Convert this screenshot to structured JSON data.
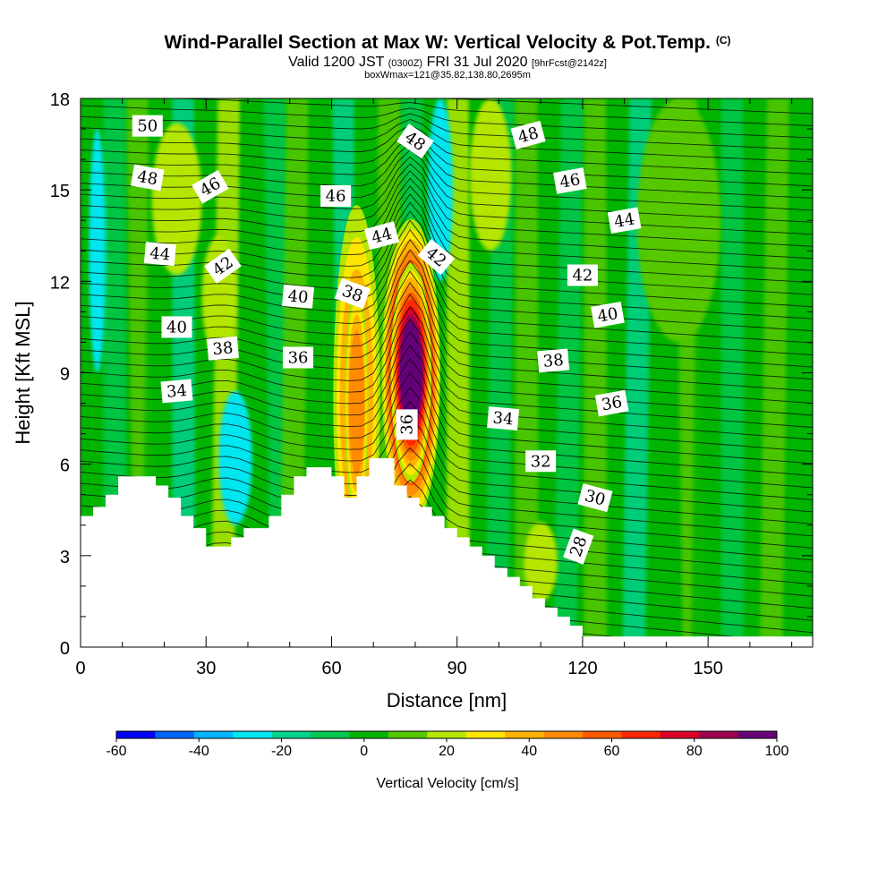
{
  "title": {
    "main": "Wind-Parallel Section at Max W: Vertical Velocity & Pot.Temp.",
    "main_mark": "(C)",
    "line2_a": "Valid 1200 JST",
    "line2_b": "(0300Z)",
    "line2_c": "FRI 31 Jul 2020",
    "line2_d": "[9hrFcst@2142z]",
    "line3": "boxWmax=121@35.82,138.80,2695m"
  },
  "chart_data": {
    "type": "heatmap",
    "xlabel": "Distance [nm]",
    "ylabel": "Height [Kft MSL]",
    "xlim": [
      0,
      175
    ],
    "ylim": [
      0,
      18
    ],
    "xticks": [
      "0",
      "30",
      "60",
      "90",
      "120",
      "150"
    ],
    "yticks": [
      "0",
      "3",
      "6",
      "9",
      "12",
      "15",
      "18"
    ],
    "colorbar": {
      "label": "Vertical Velocity [cm/s]",
      "tick_labels": [
        "-60",
        "-40",
        "-20",
        "0",
        "20",
        "40",
        "60",
        "80",
        "100"
      ],
      "levels": [
        -60,
        -50,
        -40,
        -30,
        -20,
        -10,
        0,
        10,
        20,
        30,
        40,
        50,
        60,
        70,
        80,
        90,
        100
      ],
      "colors": [
        "#0000ff",
        "#0064ff",
        "#00b4ff",
        "#00e6f0",
        "#00d28c",
        "#00c850",
        "#00b400",
        "#55c800",
        "#b4e600",
        "#ffe600",
        "#ffb400",
        "#ff8c00",
        "#ff5a00",
        "#ff2800",
        "#dc0028",
        "#a00050",
        "#640078"
      ]
    },
    "max_w": {
      "value": 121,
      "x": 78,
      "y": 9
    },
    "terrain": [
      [
        0,
        4.3
      ],
      [
        3,
        4.3
      ],
      [
        3,
        4.6
      ],
      [
        6,
        4.6
      ],
      [
        6,
        5.0
      ],
      [
        9,
        5.0
      ],
      [
        9,
        5.6
      ],
      [
        18,
        5.6
      ],
      [
        18,
        5.3
      ],
      [
        21,
        5.3
      ],
      [
        21,
        4.9
      ],
      [
        24,
        4.9
      ],
      [
        24,
        4.3
      ],
      [
        27,
        4.3
      ],
      [
        27,
        3.9
      ],
      [
        30,
        3.9
      ],
      [
        30,
        3.3
      ],
      [
        36,
        3.3
      ],
      [
        36,
        3.6
      ],
      [
        39,
        3.6
      ],
      [
        39,
        3.9
      ],
      [
        45,
        3.9
      ],
      [
        45,
        4.3
      ],
      [
        48,
        4.3
      ],
      [
        48,
        5.0
      ],
      [
        51,
        5.0
      ],
      [
        51,
        5.6
      ],
      [
        54,
        5.6
      ],
      [
        54,
        5.9
      ],
      [
        60,
        5.9
      ],
      [
        60,
        5.6
      ],
      [
        63,
        5.6
      ],
      [
        63,
        4.9
      ],
      [
        66,
        4.9
      ],
      [
        66,
        5.6
      ],
      [
        69,
        5.6
      ],
      [
        69,
        6.2
      ],
      [
        75,
        6.2
      ],
      [
        75,
        5.3
      ],
      [
        78,
        5.3
      ],
      [
        78,
        4.9
      ],
      [
        81,
        4.9
      ],
      [
        81,
        4.6
      ],
      [
        84,
        4.6
      ],
      [
        84,
        4.3
      ],
      [
        87,
        4.3
      ],
      [
        87,
        3.9
      ],
      [
        90,
        3.9
      ],
      [
        90,
        3.6
      ],
      [
        93,
        3.6
      ],
      [
        93,
        3.3
      ],
      [
        96,
        3.3
      ],
      [
        96,
        3.0
      ],
      [
        99,
        3.0
      ],
      [
        99,
        2.6
      ],
      [
        102,
        2.6
      ],
      [
        102,
        2.3
      ],
      [
        105,
        2.3
      ],
      [
        105,
        2.0
      ],
      [
        108,
        2.0
      ],
      [
        108,
        1.6
      ],
      [
        111,
        1.6
      ],
      [
        111,
        1.3
      ],
      [
        114,
        1.3
      ],
      [
        114,
        1.0
      ],
      [
        117,
        1.0
      ],
      [
        117,
        0.7
      ],
      [
        120,
        0.7
      ],
      [
        120,
        0.35
      ],
      [
        175,
        0.35
      ]
    ],
    "w_blobs": [
      {
        "x": 79,
        "y": 9,
        "rx": 5,
        "ry": 2.8,
        "value": 100
      },
      {
        "x": 79,
        "y": 9,
        "rx": 3.5,
        "ry": 2.0,
        "value": 121
      },
      {
        "x": 66,
        "y": 8.2,
        "rx": 4,
        "ry": 3.5,
        "value": 40
      },
      {
        "x": 66,
        "y": 8.0,
        "rx": 2,
        "ry": 2.2,
        "value": 50
      },
      {
        "x": 86,
        "y": 15,
        "rx": 3,
        "ry": 3,
        "value": -30
      },
      {
        "x": 37,
        "y": 6.2,
        "rx": 4,
        "ry": 2.2,
        "value": -25
      },
      {
        "x": 23,
        "y": 14.7,
        "rx": 6,
        "ry": 2.5,
        "value": 25
      },
      {
        "x": 98,
        "y": 15.5,
        "rx": 5,
        "ry": 2.5,
        "value": 25
      },
      {
        "x": 33,
        "y": 11.5,
        "rx": 4,
        "ry": 2,
        "value": 25
      },
      {
        "x": 4,
        "y": 13,
        "rx": 2,
        "ry": 4,
        "value": -25
      },
      {
        "x": 110,
        "y": 2.8,
        "rx": 4,
        "ry": 1.3,
        "value": 25
      },
      {
        "x": 143,
        "y": 14,
        "rx": 10,
        "ry": 4,
        "value": 10
      }
    ],
    "theta_contours": [
      {
        "value": 28,
        "label": "28"
      },
      {
        "value": 30,
        "label": "30"
      },
      {
        "value": 32,
        "label": "32"
      },
      {
        "value": 34,
        "label": "34"
      },
      {
        "value": 36,
        "label": "36"
      },
      {
        "value": 38,
        "label": "38"
      },
      {
        "value": 40,
        "label": "40"
      },
      {
        "value": 42,
        "label": "42"
      },
      {
        "value": 44,
        "label": "44"
      },
      {
        "value": 46,
        "label": "46"
      },
      {
        "value": 48,
        "label": "48"
      },
      {
        "value": 50,
        "label": "50"
      }
    ],
    "contour_labels": [
      {
        "text": "50",
        "x": 16,
        "y": 17.1,
        "angle": 0
      },
      {
        "text": "48",
        "x": 16,
        "y": 15.4,
        "angle": 10
      },
      {
        "text": "46",
        "x": 31,
        "y": 15.1,
        "angle": -30
      },
      {
        "text": "44",
        "x": 19,
        "y": 12.9,
        "angle": 5
      },
      {
        "text": "42",
        "x": 34,
        "y": 12.5,
        "angle": -35
      },
      {
        "text": "40",
        "x": 23,
        "y": 10.5,
        "angle": 0
      },
      {
        "text": "38",
        "x": 34,
        "y": 9.8,
        "angle": -5
      },
      {
        "text": "36",
        "x": 52,
        "y": 9.5,
        "angle": 0
      },
      {
        "text": "34",
        "x": 23,
        "y": 8.4,
        "angle": -5
      },
      {
        "text": "46",
        "x": 61,
        "y": 14.8,
        "angle": 0
      },
      {
        "text": "44",
        "x": 72,
        "y": 13.5,
        "angle": -15
      },
      {
        "text": "40",
        "x": 52,
        "y": 11.5,
        "angle": 5
      },
      {
        "text": "38",
        "x": 65,
        "y": 11.6,
        "angle": 20
      },
      {
        "text": "48",
        "x": 80,
        "y": 16.6,
        "angle": 35
      },
      {
        "text": "42",
        "x": 85,
        "y": 12.8,
        "angle": 40
      },
      {
        "text": "36",
        "x": 78,
        "y": 7.3,
        "angle": -90
      },
      {
        "text": "48",
        "x": 107,
        "y": 16.8,
        "angle": -15
      },
      {
        "text": "46",
        "x": 117,
        "y": 15.3,
        "angle": -10
      },
      {
        "text": "44",
        "x": 130,
        "y": 14.0,
        "angle": -10
      },
      {
        "text": "42",
        "x": 120,
        "y": 12.2,
        "angle": 0
      },
      {
        "text": "40",
        "x": 126,
        "y": 10.9,
        "angle": -10
      },
      {
        "text": "38",
        "x": 113,
        "y": 9.4,
        "angle": -5
      },
      {
        "text": "36",
        "x": 127,
        "y": 8.0,
        "angle": -10
      },
      {
        "text": "34",
        "x": 101,
        "y": 7.5,
        "angle": 5
      },
      {
        "text": "32",
        "x": 110,
        "y": 6.1,
        "angle": 0
      },
      {
        "text": "30",
        "x": 123,
        "y": 4.9,
        "angle": 15
      },
      {
        "text": "28",
        "x": 119,
        "y": 3.3,
        "angle": -70
      }
    ]
  }
}
